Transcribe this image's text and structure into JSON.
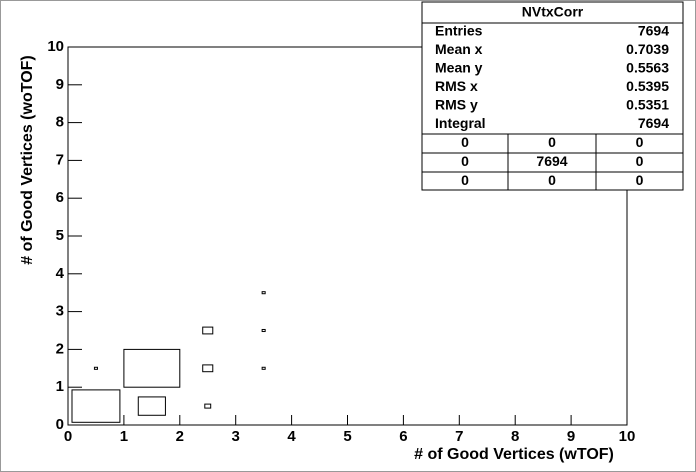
{
  "chart_data": {
    "type": "box",
    "xlabel": "# of Good Vertices (wTOF)",
    "ylabel": "# of Good Vertices (woTOF)",
    "x": [
      0.5,
      1.5,
      1.5,
      2.5,
      2.5,
      2.5,
      0.5,
      3.5,
      3.5,
      3.5
    ],
    "y": [
      0.5,
      1.5,
      0.5,
      2.5,
      1.5,
      0.5,
      1.5,
      3.5,
      2.5,
      1.5
    ],
    "values": [
      3000,
      3500,
      1700,
      630,
      630,
      370,
      190,
      190,
      190,
      190
    ],
    "xlim": [
      0,
      10
    ],
    "ylim": [
      0,
      10
    ],
    "xticks": [
      0,
      1,
      2,
      3,
      4,
      5,
      6,
      7,
      8,
      9,
      10
    ],
    "yticks": [
      0,
      1,
      2,
      3,
      4,
      5,
      6,
      7,
      8,
      9,
      10
    ],
    "color": "#000000",
    "stats": {
      "name": "NVtxCorr",
      "rows": [
        {
          "label": "Entries",
          "value": 7694
        },
        {
          "label": "Mean x",
          "value": 0.7039
        },
        {
          "label": "Mean y",
          "value": 0.5563
        },
        {
          "label": "RMS x",
          "value": 0.5395
        },
        {
          "label": "RMS y",
          "value": 0.5351
        },
        {
          "label": "Integral",
          "value": 7694
        }
      ],
      "table": [
        [
          0,
          0,
          0
        ],
        [
          0,
          7694,
          0
        ],
        [
          0,
          0,
          0
        ]
      ]
    }
  }
}
